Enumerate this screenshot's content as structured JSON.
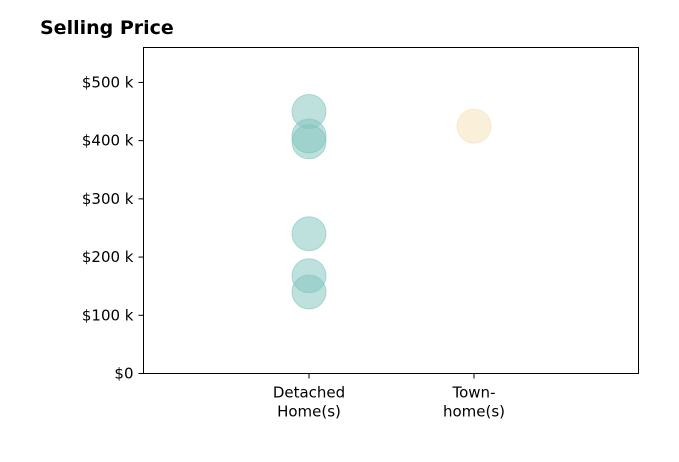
{
  "chart_data": {
    "type": "scatter",
    "title": "Selling Price",
    "xlabel": "",
    "ylabel": "",
    "categories": [
      [
        "Detached",
        "Home(s)"
      ],
      [
        "Town-",
        "home(s)"
      ]
    ],
    "ylim": [
      0,
      560000
    ],
    "yticks": [
      {
        "value": 0,
        "label": "$0"
      },
      {
        "value": 100000,
        "label": "$100 k"
      },
      {
        "value": 200000,
        "label": "$200 k"
      },
      {
        "value": 300000,
        "label": "$300 k"
      },
      {
        "value": 400000,
        "label": "$400 k"
      },
      {
        "value": 500000,
        "label": "$500 k"
      }
    ],
    "grid": false,
    "series": [
      {
        "category_index": 0,
        "color": "#7fc4bc",
        "values": [
          450000,
          408000,
          398000,
          240000,
          168000,
          140000
        ]
      },
      {
        "category_index": 1,
        "color": "#f6dfb4",
        "values": [
          425000
        ]
      }
    ]
  }
}
